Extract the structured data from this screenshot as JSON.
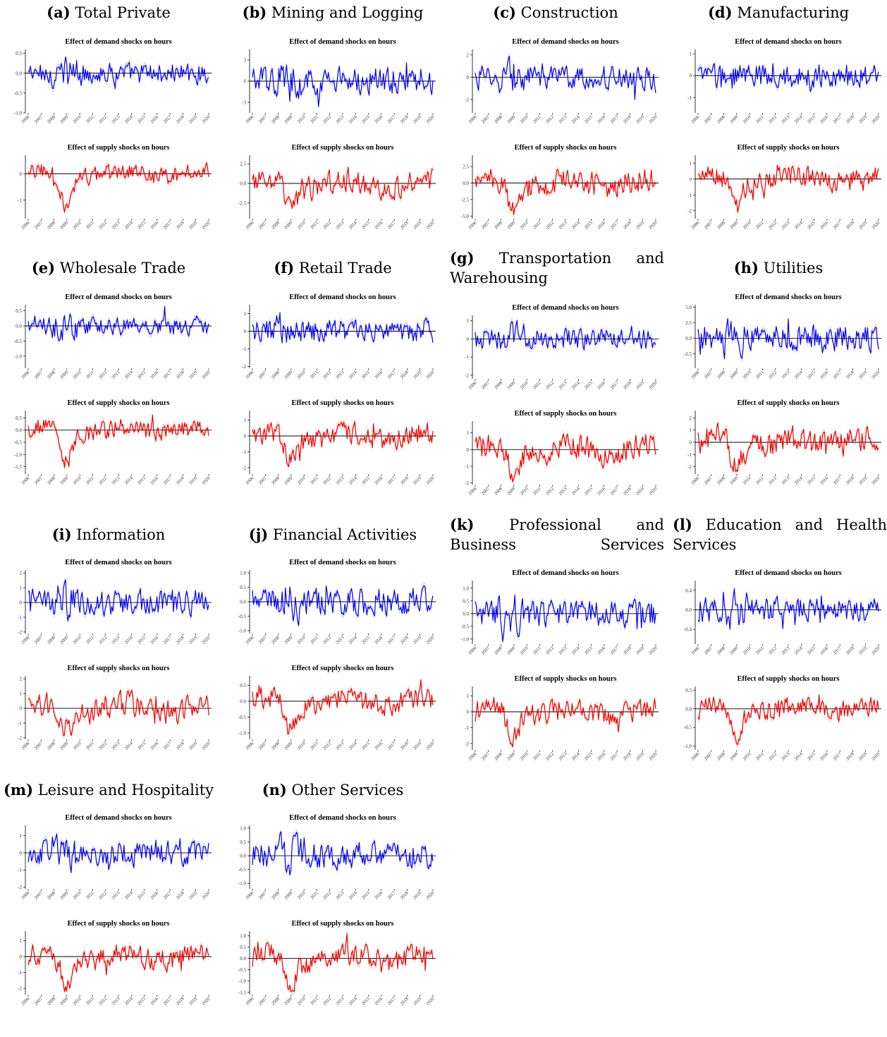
{
  "figure": {
    "years": [
      "2006",
      "2007",
      "2008",
      "2009",
      "2010",
      "2011",
      "2012",
      "2013",
      "2014",
      "2015",
      "2016",
      "2017",
      "2018",
      "2019",
      "2020"
    ],
    "demand_title": "Effect of demand shocks on hours",
    "supply_title": "Effect of supply shocks on hours",
    "colors": {
      "demand": "#0000ee",
      "demand_band": "#c9c9f4",
      "supply": "#ee0000",
      "supply_band": "#f6c6c6",
      "axis": "#000000"
    }
  },
  "panels": [
    {
      "id": "a",
      "label": "(a)",
      "title": "Total Private",
      "dticks": [
        {
          "v": -1,
          "t": "-1.0"
        },
        {
          "v": -0.5,
          "t": "-0.5"
        },
        {
          "v": 0,
          "t": "0.0"
        },
        {
          "v": 0.5,
          "t": "0.5"
        }
      ],
      "sticks": [
        {
          "v": -1,
          "t": "-1"
        },
        {
          "v": 0,
          "t": "0"
        }
      ]
    },
    {
      "id": "b",
      "label": "(b)",
      "title": "Mining and Logging",
      "dticks": [
        {
          "v": -3,
          "t": "-3"
        },
        {
          "v": 0,
          "t": "0"
        },
        {
          "v": 3,
          "t": "3"
        }
      ],
      "sticks": [
        {
          "v": -2.5,
          "t": "-2.5"
        },
        {
          "v": 0,
          "t": "0.0"
        },
        {
          "v": 2.5,
          "t": "2.5"
        }
      ]
    },
    {
      "id": "c",
      "label": "(c)",
      "title": "Construction",
      "dticks": [
        {
          "v": -2,
          "t": "-2"
        },
        {
          "v": 0,
          "t": "0"
        },
        {
          "v": 2,
          "t": "2"
        }
      ],
      "sticks": [
        {
          "v": -5,
          "t": "-5.0"
        },
        {
          "v": -2.5,
          "t": "-2.5"
        },
        {
          "v": 0,
          "t": "0.0"
        },
        {
          "v": 2.5,
          "t": "2.5"
        }
      ]
    },
    {
      "id": "d",
      "label": "(d)",
      "title": "Manufacturing",
      "dticks": [
        {
          "v": -1,
          "t": "-1"
        },
        {
          "v": 0,
          "t": "0"
        },
        {
          "v": 1,
          "t": "1"
        }
      ],
      "sticks": [
        {
          "v": -2,
          "t": "-2"
        },
        {
          "v": -1,
          "t": "-1"
        },
        {
          "v": 0,
          "t": "0"
        },
        {
          "v": 1,
          "t": "1"
        }
      ]
    },
    {
      "id": "e",
      "label": "(e)",
      "title": "Wholesale Trade",
      "dticks": [
        {
          "v": -1,
          "t": "-1.0"
        },
        {
          "v": -0.5,
          "t": "-0.5"
        },
        {
          "v": 0,
          "t": "0.0"
        },
        {
          "v": 0.5,
          "t": "0.5"
        }
      ],
      "sticks": [
        {
          "v": -1.5,
          "t": "-1.5"
        },
        {
          "v": -1,
          "t": "-1.0"
        },
        {
          "v": -0.5,
          "t": "-0.5"
        },
        {
          "v": 0,
          "t": "0.0"
        },
        {
          "v": 0.5,
          "t": "0.5"
        }
      ]
    },
    {
      "id": "f",
      "label": "(f)",
      "title": "Retail Trade",
      "dticks": [
        {
          "v": -2,
          "t": "-2"
        },
        {
          "v": -1,
          "t": "-1"
        },
        {
          "v": 0,
          "t": "0"
        },
        {
          "v": 1,
          "t": "1"
        }
      ],
      "sticks": [
        {
          "v": -2,
          "t": "-2"
        },
        {
          "v": -1,
          "t": "-1"
        },
        {
          "v": 0,
          "t": "0"
        },
        {
          "v": 1,
          "t": "1"
        }
      ]
    },
    {
      "id": "g",
      "label": "(g)",
      "title": "Transportation and Warehousing",
      "dticks": [
        {
          "v": -2,
          "t": "-2"
        },
        {
          "v": -1,
          "t": "-1"
        },
        {
          "v": 0,
          "t": "0"
        },
        {
          "v": 1,
          "t": "1"
        }
      ],
      "sticks": [
        {
          "v": -2,
          "t": "-2"
        },
        {
          "v": -1,
          "t": "-1"
        },
        {
          "v": 0,
          "t": "0"
        },
        {
          "v": 1,
          "t": "1"
        }
      ]
    },
    {
      "id": "h",
      "label": "(h)",
      "title": "Utilities",
      "dticks": [
        {
          "v": -2.5,
          "t": "-2.5"
        },
        {
          "v": 0,
          "t": "0.0"
        },
        {
          "v": 2.5,
          "t": "2.5"
        },
        {
          "v": 5,
          "t": "5.0"
        }
      ],
      "sticks": [
        {
          "v": -2,
          "t": "-2"
        },
        {
          "v": -1,
          "t": "-1"
        },
        {
          "v": 0,
          "t": "0"
        },
        {
          "v": 1,
          "t": "1"
        },
        {
          "v": 2,
          "t": "2"
        }
      ]
    },
    {
      "id": "i",
      "label": "(i)",
      "title": "Information",
      "dticks": [
        {
          "v": -2,
          "t": "-2"
        },
        {
          "v": -1,
          "t": "-1"
        },
        {
          "v": 0,
          "t": "0"
        },
        {
          "v": 1,
          "t": "1"
        },
        {
          "v": 2,
          "t": "2"
        }
      ],
      "sticks": [
        {
          "v": -2,
          "t": "-2"
        },
        {
          "v": -1,
          "t": "-1"
        },
        {
          "v": 0,
          "t": "0"
        },
        {
          "v": 1,
          "t": "1"
        },
        {
          "v": 2,
          "t": "2"
        }
      ]
    },
    {
      "id": "j",
      "label": "(j)",
      "title": "Financial Activities",
      "dticks": [
        {
          "v": -1,
          "t": "-1.0"
        },
        {
          "v": -0.5,
          "t": "-0.5"
        },
        {
          "v": 0,
          "t": "0.0"
        },
        {
          "v": 0.5,
          "t": "0.5"
        },
        {
          "v": 1,
          "t": "1.0"
        }
      ],
      "sticks": [
        {
          "v": -1,
          "t": "-1.0"
        },
        {
          "v": -0.5,
          "t": "-0.5"
        },
        {
          "v": 0,
          "t": "0.0"
        },
        {
          "v": 0.5,
          "t": "0.5"
        }
      ]
    },
    {
      "id": "k",
      "label": "(k)",
      "title": "Professional and Business Services",
      "dticks": [
        {
          "v": -1,
          "t": "-1.0"
        },
        {
          "v": -0.5,
          "t": "-0.5"
        },
        {
          "v": 0,
          "t": "0.0"
        },
        {
          "v": 0.5,
          "t": "0.5"
        },
        {
          "v": 1,
          "t": "1.0"
        }
      ],
      "sticks": [
        {
          "v": -2,
          "t": "-2"
        },
        {
          "v": -1,
          "t": "-1"
        },
        {
          "v": 0,
          "t": "0"
        },
        {
          "v": 1,
          "t": "1"
        }
      ]
    },
    {
      "id": "l",
      "label": "(l)",
      "title": "Education and Health Services",
      "dticks": [
        {
          "v": -0.4,
          "t": "-0.4"
        },
        {
          "v": 0,
          "t": "0.0"
        },
        {
          "v": 0.4,
          "t": "0.4"
        }
      ],
      "sticks": [
        {
          "v": -1,
          "t": "-1.0"
        },
        {
          "v": -0.5,
          "t": "-0.5"
        },
        {
          "v": 0,
          "t": "0.0"
        },
        {
          "v": 0.5,
          "t": "0.5"
        }
      ]
    },
    {
      "id": "m",
      "label": "(m)",
      "title": "Leisure and Hospitality",
      "dticks": [
        {
          "v": -2,
          "t": "-2"
        },
        {
          "v": -1,
          "t": "-1"
        },
        {
          "v": 0,
          "t": "0"
        },
        {
          "v": 1,
          "t": "1"
        }
      ],
      "sticks": [
        {
          "v": -2,
          "t": "-2"
        },
        {
          "v": -1,
          "t": "-1"
        },
        {
          "v": 0,
          "t": "0"
        },
        {
          "v": 1,
          "t": "1"
        }
      ]
    },
    {
      "id": "n",
      "label": "(n)",
      "title": "Other Services",
      "dticks": [
        {
          "v": -1,
          "t": "-1.0"
        },
        {
          "v": -0.5,
          "t": "-0.5"
        },
        {
          "v": 0,
          "t": "0.0"
        },
        {
          "v": 0.5,
          "t": "0.5"
        },
        {
          "v": 1,
          "t": "1.0"
        }
      ],
      "sticks": [
        {
          "v": -1.5,
          "t": "-1.5"
        },
        {
          "v": -1,
          "t": "-1.0"
        },
        {
          "v": -0.5,
          "t": "-0.5"
        },
        {
          "v": 0,
          "t": "0.0"
        },
        {
          "v": 0.5,
          "t": "0.5"
        },
        {
          "v": 1,
          "t": "1.0"
        }
      ]
    }
  ],
  "chart_data": {
    "type": "line",
    "x_range": [
      "2006",
      "2020"
    ],
    "series": [
      {
        "name": "Effect of demand shocks on hours"
      },
      {
        "name": "Effect of supply shocks on hours"
      }
    ]
  }
}
